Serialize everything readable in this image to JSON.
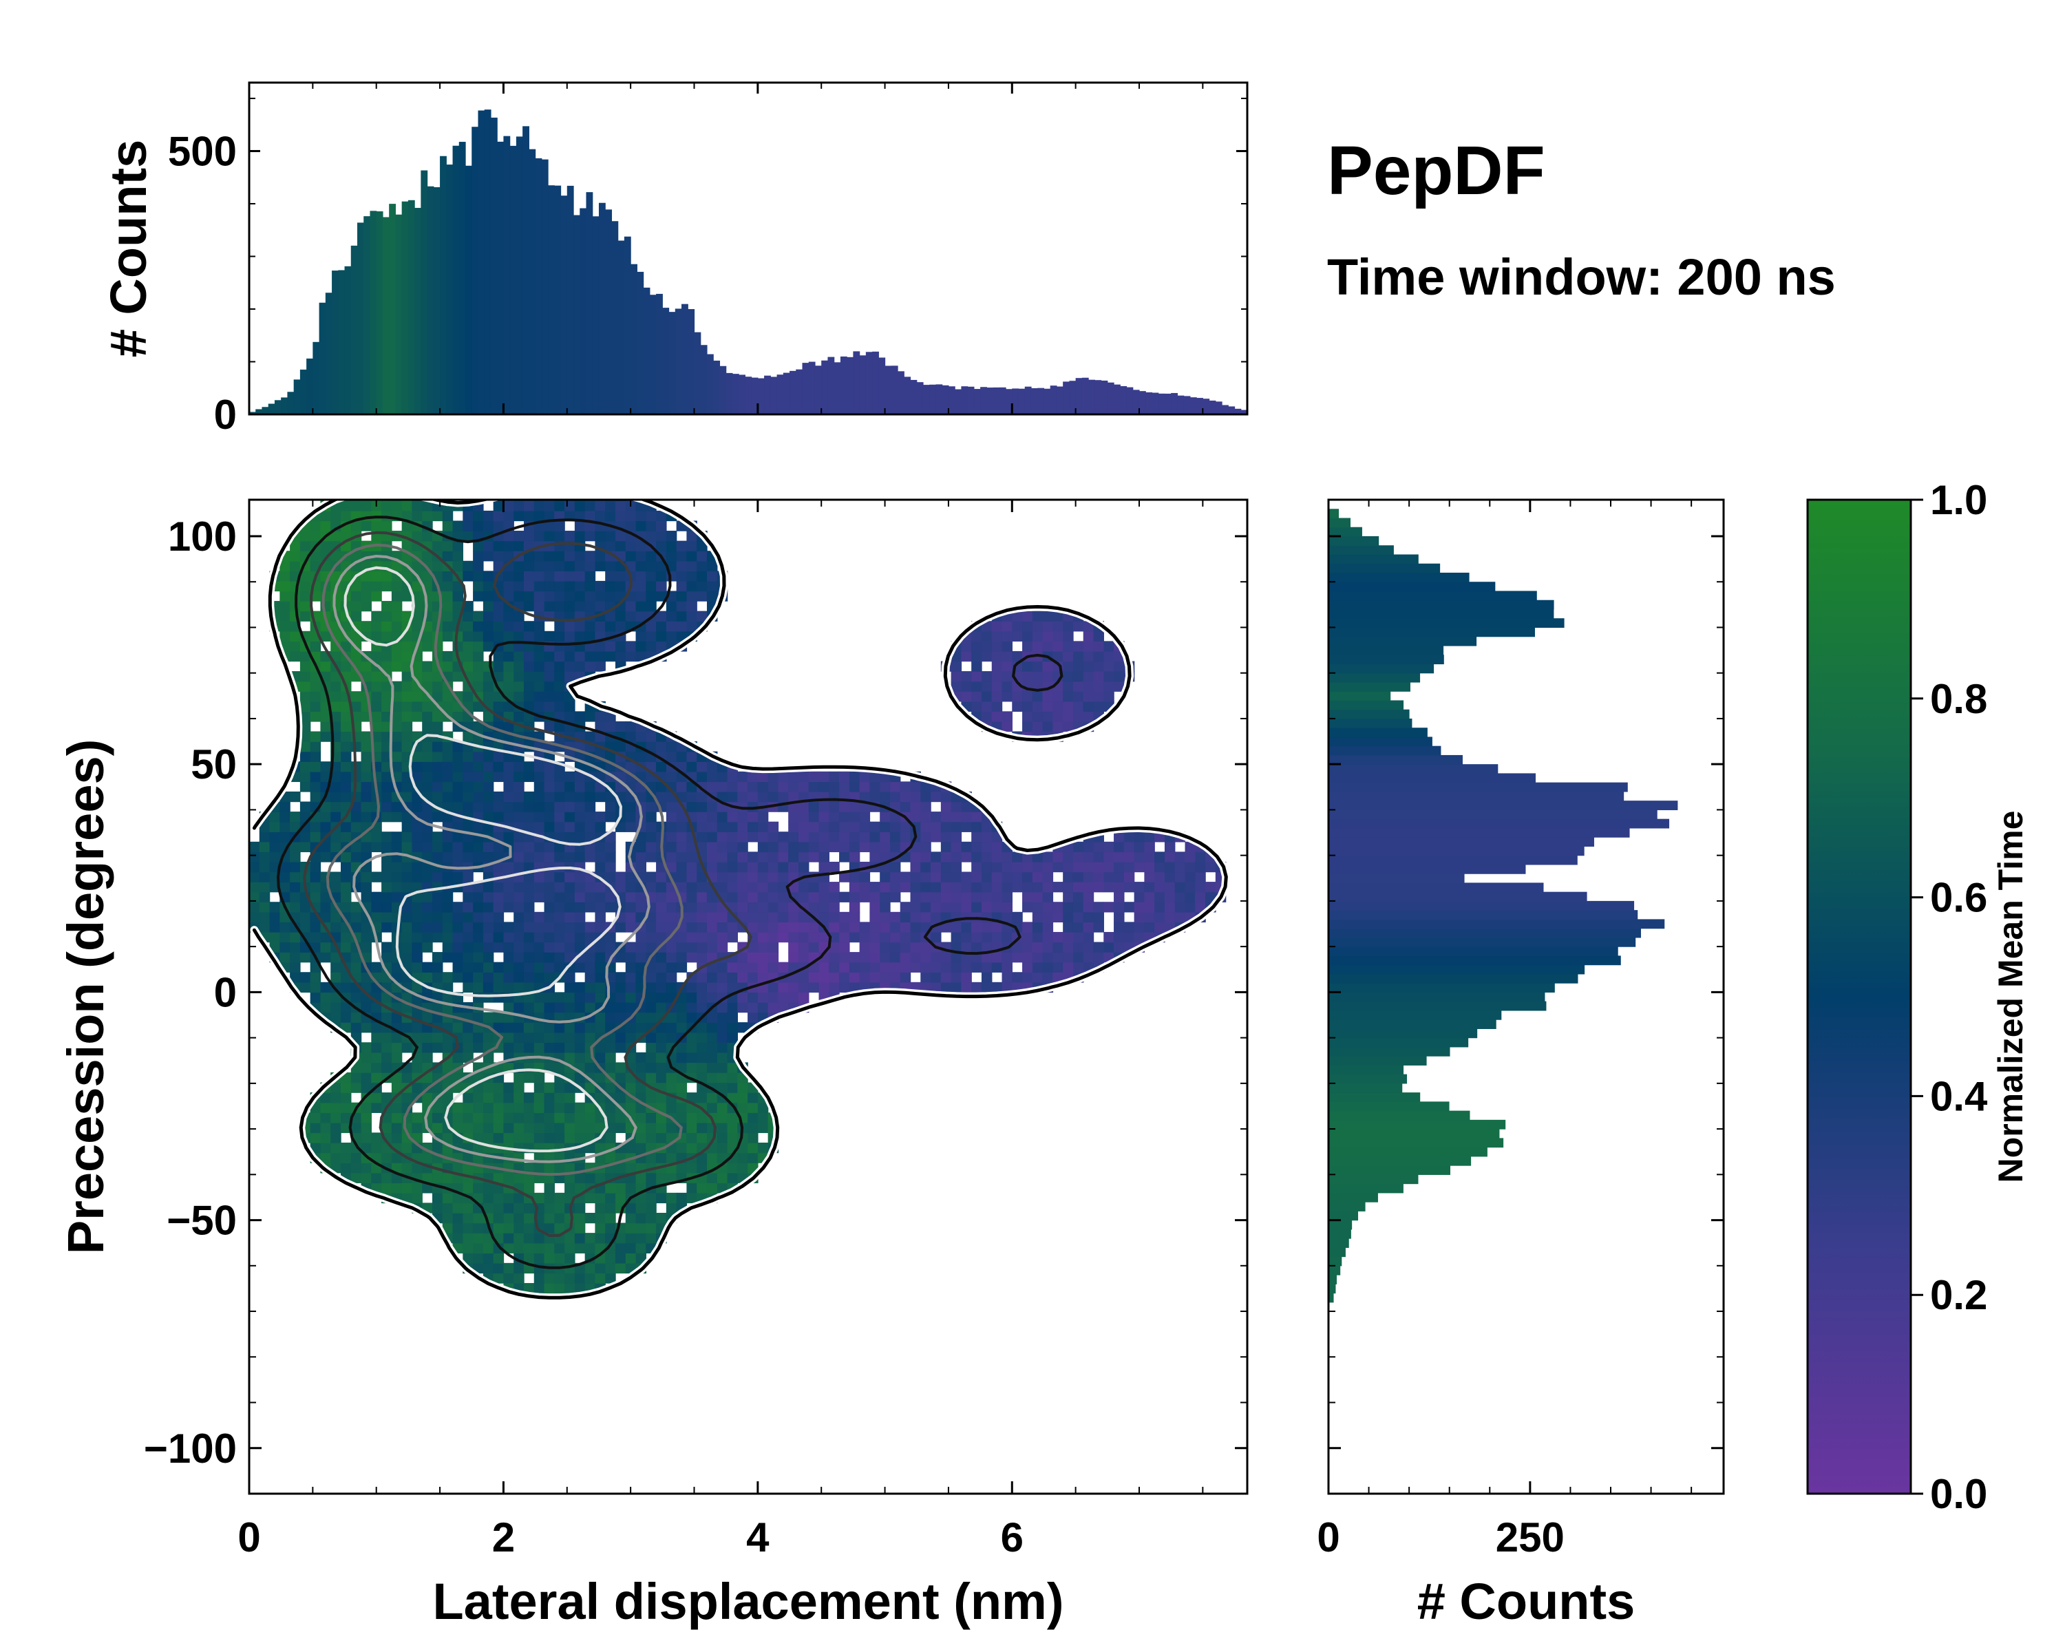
{
  "chart_data": [
    {
      "id": "top-hist",
      "type": "bar",
      "ylabel": "# Counts",
      "xlim": [
        0,
        7.85
      ],
      "ylim": [
        0,
        630
      ],
      "yticks": [
        0,
        500
      ],
      "bin_width": 0.05,
      "profile_x": [
        0.0,
        0.1,
        0.3,
        0.5,
        0.6,
        0.8,
        0.95,
        1.05,
        1.2,
        1.4,
        1.55,
        1.75,
        1.85,
        2.0,
        2.15,
        2.3,
        2.5,
        2.75,
        2.95,
        3.1,
        3.3,
        3.45,
        3.6,
        3.75,
        4.0,
        4.3,
        4.6,
        4.9,
        5.05,
        5.3,
        5.6,
        6.0,
        6.3,
        6.6,
        7.0,
        7.3,
        7.6,
        7.8
      ],
      "profile_y": [
        2,
        12,
        35,
        110,
        230,
        310,
        420,
        400,
        390,
        440,
        470,
        500,
        565,
        530,
        560,
        470,
        410,
        390,
        330,
        250,
        200,
        210,
        120,
        85,
        65,
        90,
        105,
        120,
        90,
        60,
        50,
        50,
        50,
        70,
        45,
        38,
        25,
        8
      ],
      "time_x": [
        0.0,
        0.5,
        0.9,
        1.1,
        1.4,
        1.8,
        2.3,
        3.0,
        3.6,
        3.9,
        7.85
      ],
      "time_v": [
        0.6,
        0.55,
        0.62,
        0.75,
        0.6,
        0.48,
        0.45,
        0.42,
        0.35,
        0.27,
        0.25
      ]
    },
    {
      "id": "density-map",
      "type": "heatmap",
      "xlabel": "Lateral displacement (nm)",
      "ylabel": "Precession (degrees)",
      "xlim": [
        0,
        7.85
      ],
      "ylim": [
        -110,
        108
      ],
      "xticks": [
        0,
        2,
        4,
        6
      ],
      "yticks": [
        -100,
        -50,
        0,
        50,
        100
      ],
      "colorscale": [
        "#6a35a0",
        "#3a3d8d",
        "#023f6b",
        "#146b4a",
        "#1f8a28"
      ],
      "clusters": [
        {
          "x": 1.0,
          "y": 86,
          "sx": 0.35,
          "sy": 10,
          "w": 1.0,
          "t": 0.85
        },
        {
          "x": 1.3,
          "y": 62,
          "sx": 0.4,
          "sy": 10,
          "w": 0.6,
          "t": 0.8
        },
        {
          "x": 2.5,
          "y": 90,
          "sx": 0.6,
          "sy": 10,
          "w": 0.5,
          "t": 0.42
        },
        {
          "x": 1.9,
          "y": 46,
          "sx": 0.6,
          "sy": 8,
          "w": 0.95,
          "t": 0.45
        },
        {
          "x": 2.7,
          "y": 40,
          "sx": 0.5,
          "sy": 8,
          "w": 0.6,
          "t": 0.4
        },
        {
          "x": 1.0,
          "y": 25,
          "sx": 0.5,
          "sy": 10,
          "w": 0.65,
          "t": 0.6
        },
        {
          "x": 2.1,
          "y": 17,
          "sx": 0.5,
          "sy": 8,
          "w": 0.8,
          "t": 0.35
        },
        {
          "x": 2.9,
          "y": 20,
          "sx": 0.6,
          "sy": 10,
          "w": 0.55,
          "t": 0.3
        },
        {
          "x": 1.5,
          "y": 5,
          "sx": 0.5,
          "sy": 8,
          "w": 0.75,
          "t": 0.62
        },
        {
          "x": 2.6,
          "y": -3,
          "sx": 0.6,
          "sy": 8,
          "w": 0.6,
          "t": 0.55
        },
        {
          "x": 2.2,
          "y": -22,
          "sx": 0.5,
          "sy": 7,
          "w": 0.7,
          "t": 0.7
        },
        {
          "x": 1.7,
          "y": -30,
          "sx": 0.6,
          "sy": 8,
          "w": 0.6,
          "t": 0.75
        },
        {
          "x": 2.7,
          "y": -32,
          "sx": 0.5,
          "sy": 7,
          "w": 0.5,
          "t": 0.72
        },
        {
          "x": 2.4,
          "y": -52,
          "sx": 0.45,
          "sy": 8,
          "w": 0.35,
          "t": 0.7
        },
        {
          "x": 3.5,
          "y": -30,
          "sx": 0.35,
          "sy": 8,
          "w": 0.3,
          "t": 0.75
        },
        {
          "x": 4.6,
          "y": 35,
          "sx": 0.7,
          "sy": 8,
          "w": 0.3,
          "t": 0.26
        },
        {
          "x": 4.0,
          "y": 10,
          "sx": 0.5,
          "sy": 8,
          "w": 0.25,
          "t": 0.12
        },
        {
          "x": 5.7,
          "y": 12,
          "sx": 0.7,
          "sy": 8,
          "w": 0.22,
          "t": 0.25
        },
        {
          "x": 6.2,
          "y": 70,
          "sx": 0.45,
          "sy": 9,
          "w": 0.22,
          "t": 0.25
        },
        {
          "x": 7.0,
          "y": 25,
          "sx": 0.5,
          "sy": 8,
          "w": 0.15,
          "t": 0.25
        }
      ]
    },
    {
      "id": "side-hist",
      "type": "bar",
      "orientation": "horizontal",
      "xlabel": "# Counts",
      "xlim": [
        0,
        490
      ],
      "xticks": [
        0,
        250
      ],
      "ylim": [
        -110,
        108
      ],
      "bin_height": 2,
      "profile_y": [
        -68,
        -62,
        -55,
        -50,
        -45,
        -40,
        -35,
        -30,
        -26,
        -22,
        -17,
        -12,
        -5,
        2,
        8,
        14,
        19,
        22,
        25,
        30,
        35,
        40,
        45,
        48,
        52,
        60,
        65,
        70,
        76,
        80,
        85,
        90,
        95,
        100,
        106
      ],
      "profile_c": [
        5,
        12,
        25,
        30,
        60,
        130,
        200,
        235,
        160,
        100,
        90,
        160,
        230,
        310,
        360,
        400,
        370,
        300,
        180,
        320,
        370,
        440,
        350,
        230,
        150,
        100,
        80,
        120,
        160,
        270,
        290,
        180,
        110,
        50,
        5
      ],
      "time_y": [
        -110,
        -50,
        -30,
        -10,
        0,
        8,
        20,
        35,
        50,
        58,
        65,
        72,
        90,
        100,
        108
      ],
      "time_v": [
        0.75,
        0.72,
        0.78,
        0.62,
        0.58,
        0.48,
        0.32,
        0.3,
        0.35,
        0.55,
        0.7,
        0.55,
        0.5,
        0.65,
        0.8
      ]
    }
  ],
  "title": "PepDF",
  "subtitle": "Time window: 200 ns",
  "colorbar": {
    "label": "Normalized Mean Time",
    "ticks": [
      "0.0",
      "0.2",
      "0.4",
      "0.6",
      "0.8",
      "1.0"
    ]
  }
}
